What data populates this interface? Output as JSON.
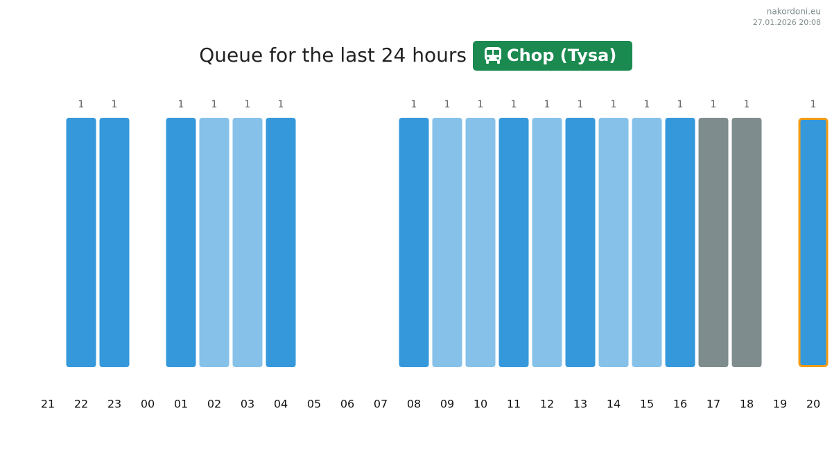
{
  "chart_data": {
    "type": "bar",
    "source": "nakordoni.eu",
    "timestamp": "27.01.2026 20:08",
    "title": "Queue for the last 24 hours",
    "badge": "Chop (Tysa)",
    "badge_color": "#1b8a50",
    "categories": [
      "21",
      "22",
      "23",
      "00",
      "01",
      "02",
      "03",
      "04",
      "05",
      "06",
      "07",
      "08",
      "09",
      "10",
      "11",
      "12",
      "13",
      "14",
      "15",
      "16",
      "17",
      "18",
      "19",
      "20"
    ],
    "values": [
      null,
      1,
      1,
      null,
      1,
      1,
      1,
      1,
      null,
      null,
      null,
      1,
      1,
      1,
      1,
      1,
      1,
      1,
      1,
      1,
      1,
      1,
      null,
      1
    ],
    "colors": [
      null,
      "#3498db",
      "#3498db",
      null,
      "#3498db",
      "#85c1e9",
      "#85c1e9",
      "#3498db",
      null,
      null,
      null,
      "#3498db",
      "#85c1e9",
      "#85c1e9",
      "#3498db",
      "#85c1e9",
      "#3498db",
      "#85c1e9",
      "#85c1e9",
      "#3498db",
      "#7f8c8d",
      "#7f8c8d",
      null,
      "#3498db"
    ],
    "highlight": "20",
    "highlight_color": "#f39c12",
    "ylim": [
      0,
      1
    ]
  }
}
